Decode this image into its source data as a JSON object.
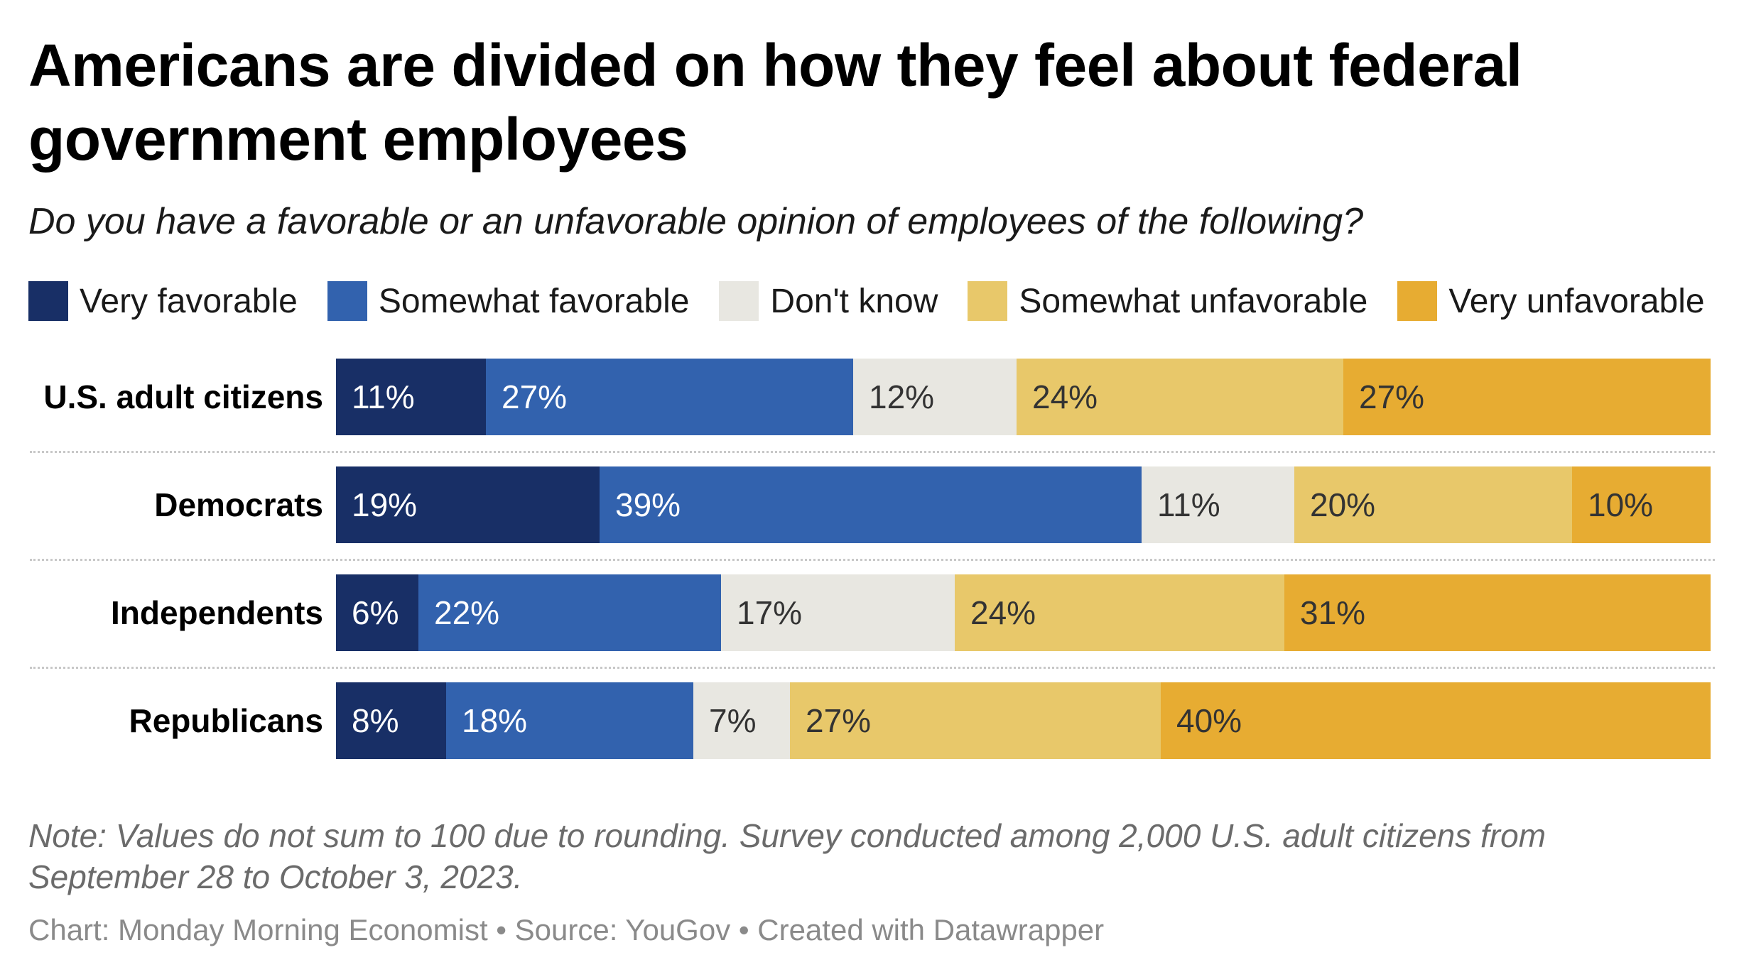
{
  "title": "Americans are divided on how they feel about federal government employees",
  "subtitle": "Do you have a favorable or an unfavorable opinion of employees of the following?",
  "note": "Note: Values do not sum to 100 due to rounding. Survey conducted among 2,000 U.S. adult citizens from September 28 to October 3, 2023.",
  "credit": "Chart: Monday Morning Economist • Source: YouGov • Created with Datawrapper",
  "chart_data": {
    "type": "bar",
    "orientation": "horizontal",
    "stacked": true,
    "title": "Americans are divided on how they feel about federal government employees",
    "subtitle": "Do you have a favorable or an unfavorable opinion of employees of the following?",
    "categories": [
      "U.S. adult citizens",
      "Democrats",
      "Independents",
      "Republicans"
    ],
    "series": [
      {
        "name": "Very favorable",
        "color": "#182f66",
        "text_color": "#ffffff",
        "values": [
          11,
          19,
          6,
          8
        ]
      },
      {
        "name": "Somewhat favorable",
        "color": "#3262ae",
        "text_color": "#ffffff",
        "values": [
          27,
          39,
          22,
          18
        ]
      },
      {
        "name": "Don't know",
        "color": "#e8e7e1",
        "text_color": "#333333",
        "values": [
          12,
          11,
          17,
          7
        ]
      },
      {
        "name": "Somewhat unfavorable",
        "color": "#e8c86a",
        "text_color": "#333333",
        "values": [
          24,
          20,
          24,
          27
        ]
      },
      {
        "name": "Very unfavorable",
        "color": "#e7ac32",
        "text_color": "#333333",
        "values": [
          27,
          10,
          31,
          40
        ]
      }
    ],
    "value_suffix": "%",
    "legend": "top-left",
    "xlabel": "",
    "ylabel": "",
    "grid": false
  }
}
